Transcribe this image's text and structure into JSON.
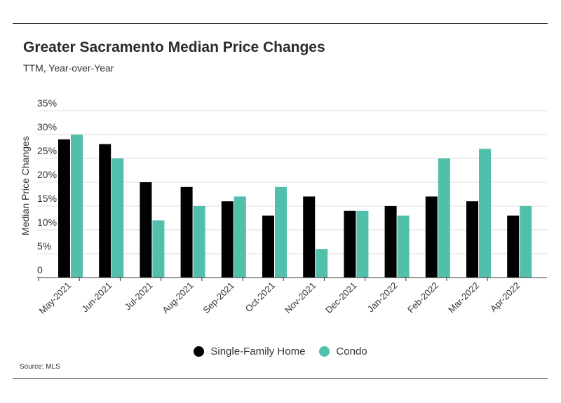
{
  "chart_data": {
    "type": "bar",
    "title": "Greater Sacramento Median Price Changes",
    "subtitle": "TTM, Year-over-Year",
    "xlabel": "",
    "ylabel": "Median Price Changes",
    "ylim": [
      0,
      35
    ],
    "ytick_values": [
      0,
      5,
      10,
      15,
      20,
      25,
      30,
      35
    ],
    "ytick_labels": [
      "0",
      "5%",
      "10%",
      "15%",
      "20%",
      "25%",
      "30%",
      "35%"
    ],
    "categories": [
      "May-2021",
      "Jun-2021",
      "Jul-2021",
      "Aug-2021",
      "Sep-2021",
      "Oct-2021",
      "Nov-2021",
      "Dec-2021",
      "Jan-2022",
      "Feb-2022",
      "Mar-2022",
      "Apr-2022"
    ],
    "series": [
      {
        "name": "Single-Family Home",
        "color": "#000000",
        "values": [
          29,
          28,
          20,
          19,
          16,
          13,
          17,
          14,
          15,
          17,
          16,
          13
        ]
      },
      {
        "name": "Condo",
        "color": "#52bfab",
        "values": [
          30,
          25,
          12,
          15,
          17,
          19,
          6,
          14,
          13,
          25,
          27,
          15
        ]
      }
    ],
    "grid": true,
    "legend_position": "bottom-center",
    "source": "Source:  MLS"
  }
}
